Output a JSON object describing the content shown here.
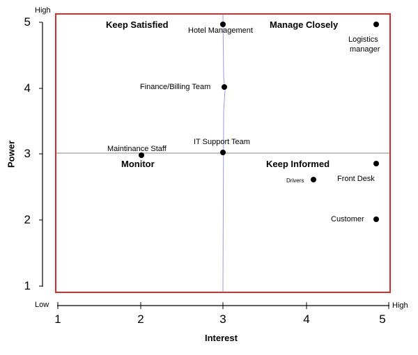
{
  "y_axis": {
    "title": "Power",
    "high_label": "High",
    "ticks": [
      "5",
      "4",
      "3",
      "2",
      "1"
    ]
  },
  "x_axis": {
    "title": "Interest",
    "low_label": "Low",
    "high_label": "High",
    "ticks": [
      "1",
      "2",
      "3",
      "4",
      "5"
    ]
  },
  "quadrants": {
    "top_left": "Keep Satisfied",
    "top_right": "Manage Closely",
    "bottom_left": "Monitor",
    "bottom_right": "Keep Informed"
  },
  "stakeholders": [
    {
      "label": "Hotel Management",
      "interest": 3.0,
      "power": 5.0
    },
    {
      "label": "Logistics manager",
      "label_line1": "Logistics",
      "label_line2": "manager",
      "interest": 4.9,
      "power": 5.0
    },
    {
      "label": "Finance/Billing Team",
      "interest": 3.0,
      "power": 4.0
    },
    {
      "label": "Maintinance Staff",
      "interest": 2.0,
      "power": 3.0
    },
    {
      "label": "IT Support Team",
      "interest": 3.0,
      "power": 3.0
    },
    {
      "label": "Front Desk",
      "interest": 4.9,
      "power": 2.85
    },
    {
      "label": "Drivers",
      "interest": 4.1,
      "power": 2.6
    },
    {
      "label": "Customer",
      "interest": 4.9,
      "power": 2.0
    }
  ],
  "colors": {
    "frame": "#d32f2f",
    "divider_vertical": "#9999dd",
    "divider_horizontal": "#888888",
    "axis": "#000000"
  }
}
